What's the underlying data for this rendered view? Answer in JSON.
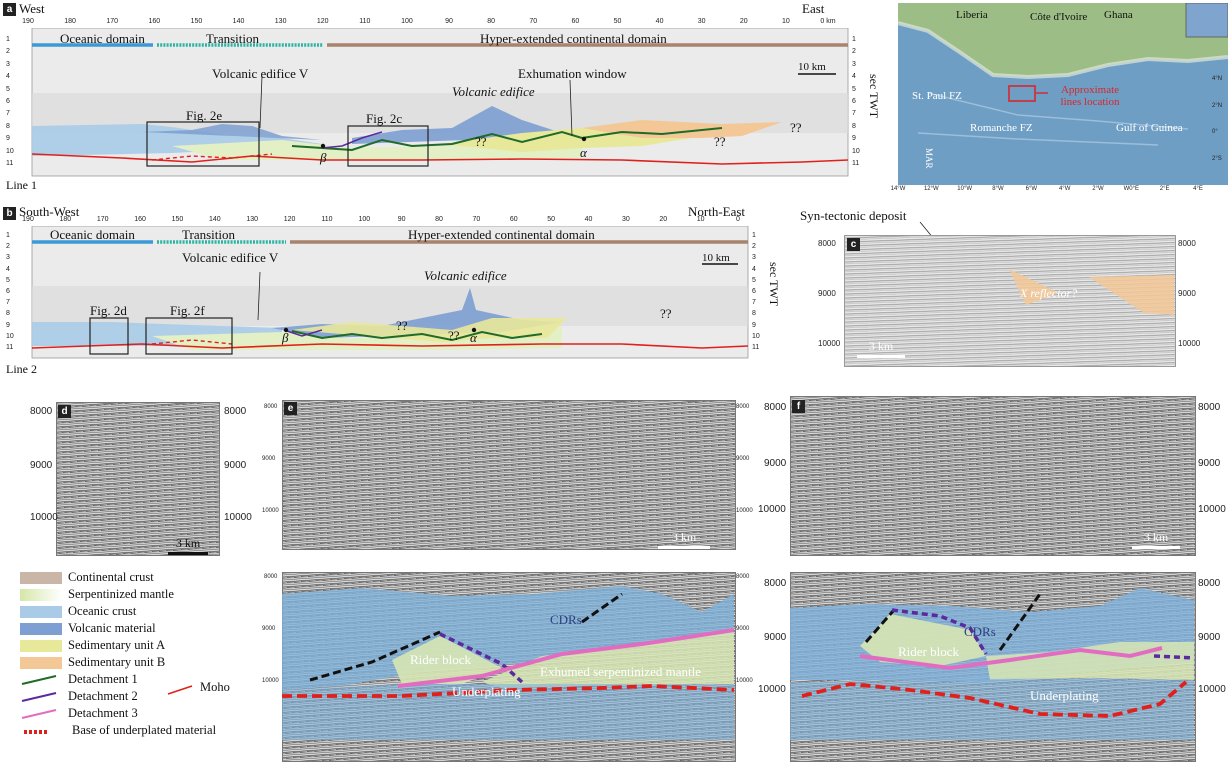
{
  "panel_a": {
    "tag": "a",
    "west": "West",
    "east": "East",
    "line": "Line 1",
    "top_ticks": [
      "190",
      "180",
      "170",
      "160",
      "150",
      "140",
      "130",
      "120",
      "110",
      "100",
      "90",
      "80",
      "70",
      "60",
      "50",
      "40",
      "30",
      "20",
      "10",
      "0 km"
    ],
    "depth_ticks": [
      "1",
      "2",
      "3",
      "4",
      "5",
      "6",
      "7",
      "8",
      "9",
      "10",
      "11"
    ],
    "axis_label": "sec TWT",
    "domains": [
      "Oceanic domain",
      "Transition",
      "Hyper-extended continental domain"
    ],
    "scale": "10 km",
    "labels": {
      "volcanic_v": "Volcanic edifice V",
      "fig2e": "Fig. 2e",
      "fig2c": "Fig. 2c",
      "volcanic": "Volcanic edifice",
      "exhumation": "Exhumation window",
      "q1": "??",
      "q2": "??",
      "q3": "??",
      "beta": "β",
      "alpha": "α"
    }
  },
  "panel_b": {
    "tag": "b",
    "west": "South-West",
    "east": "North-East",
    "line": "Line 2",
    "top_ticks": [
      "190",
      "180",
      "170",
      "160",
      "150",
      "140",
      "130",
      "120",
      "110",
      "100",
      "90",
      "80",
      "70",
      "60",
      "50",
      "40",
      "30",
      "20",
      "10",
      "0"
    ],
    "depth_ticks": [
      "1",
      "2",
      "3",
      "4",
      "5",
      "6",
      "7",
      "8",
      "9",
      "10",
      "11"
    ],
    "axis_label": "sec TWT",
    "domains": [
      "Oceanic domain",
      "Transition",
      "Hyper-extended continental domain"
    ],
    "scale": "10 km",
    "labels": {
      "volcanic_v": "Volcanic edifice V",
      "fig2d": "Fig. 2d",
      "fig2f": "Fig. 2f",
      "volcanic": "Volcanic edifice",
      "q1": "??",
      "q2": "??",
      "q3": "??",
      "beta": "β",
      "alpha": "α"
    }
  },
  "map": {
    "countries": [
      "Liberia",
      "Côte d'Ivoire",
      "Ghana"
    ],
    "labels": {
      "st_paul": "St. Paul FZ",
      "romanche": "Romanche FZ",
      "gulf": "Gulf of Guinea",
      "approx": "Approximate lines location",
      "mar": "MAR"
    },
    "lon_ticks": [
      "14°W",
      "12°W",
      "10°W",
      "8°W",
      "6°W",
      "4°W",
      "2°W",
      "W0°E",
      "2°E",
      "4°E"
    ],
    "lat_ticks": [
      "4°N",
      "2°N",
      "0°",
      "2°S"
    ]
  },
  "panel_c": {
    "tag": "c",
    "deposit": "Syn-tectonic deposit",
    "reflector": "X reflector?",
    "scale": "3 km",
    "yticks": [
      "8000",
      "9000",
      "10000"
    ]
  },
  "panel_d": {
    "tag": "d",
    "scale": "3 km",
    "yticks": [
      "8000",
      "9000",
      "10000"
    ]
  },
  "panel_e": {
    "tag": "e",
    "scale": "3 km",
    "yticks": [
      "8000",
      "9000",
      "10000"
    ],
    "labels": {
      "cdrs": "CDRs",
      "rider": "Rider block",
      "exhumed": "Exhumed serpentinized mantle",
      "underplating": "Underplating"
    }
  },
  "panel_f": {
    "tag": "f",
    "scale": "3 km",
    "yticks": [
      "8000",
      "9000",
      "10000"
    ],
    "labels": {
      "cdrs": "CDRs",
      "rider": "Rider block",
      "underplating": "Underplating"
    }
  },
  "legend": {
    "items": [
      {
        "label": "Continental crust",
        "color": "#c9b6a6"
      },
      {
        "label": "Serpentinized mantle",
        "color": "#e3efc4"
      },
      {
        "label": "Oceanic crust",
        "color": "#a9cbe8"
      },
      {
        "label": "Volcanic material",
        "color": "#7d9fd1"
      },
      {
        "label": "Sedimentary unit A",
        "color": "#e8e89a"
      },
      {
        "label": "Sedimentary unit B",
        "color": "#f3c896"
      }
    ],
    "lines": [
      {
        "label": "Detachment 1",
        "color": "#1f6b2a"
      },
      {
        "label": "Detachment 2",
        "color": "#5b2a9e"
      },
      {
        "label": "Detachment 3",
        "color": "#e26cc0"
      },
      {
        "label": "Base of underplated material",
        "color": "#e0201c"
      }
    ],
    "moho": {
      "label": "Moho",
      "color": "#e0201c"
    }
  }
}
